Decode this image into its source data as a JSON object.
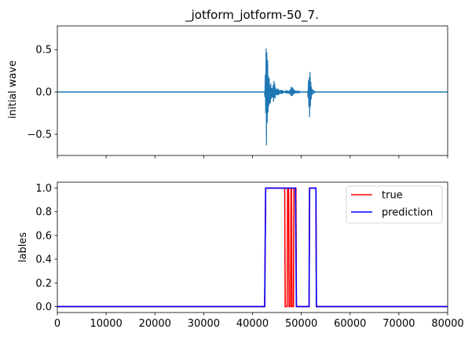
{
  "chart_data": [
    {
      "type": "line",
      "title": "_jotform_jotform-50_7.",
      "xlabel": "",
      "ylabel": "initial wave",
      "xlim": [
        0,
        80000
      ],
      "ylim": [
        -0.75,
        0.78
      ],
      "yticks": [
        -0.5,
        0.0,
        0.5
      ],
      "ytick_labels": [
        "−0.5",
        "0.0",
        "0.5"
      ],
      "xticks": [
        0,
        10000,
        20000,
        30000,
        40000,
        50000,
        60000,
        70000,
        80000
      ],
      "show_xtick_labels": false,
      "grid": false,
      "series": [
        {
          "color": "#1f77b4",
          "envelope": {
            "x": [
              0,
              42500,
              42700,
              42900,
              43000,
              43200,
              43400,
              43600,
              43800,
              44000,
              44400,
              44800,
              45300,
              45800,
              46300,
              46800,
              47300,
              47700,
              48000,
              48500,
              49000,
              49500,
              50000,
              51300,
              51500,
              51700,
              51900,
              52100,
              52300,
              52600,
              53000,
              80000
            ],
            "upper": [
              0.0,
              0.0,
              0.45,
              0.7,
              0.6,
              0.4,
              0.2,
              0.12,
              0.1,
              0.06,
              0.15,
              0.06,
              0.04,
              0.03,
              0.02,
              0.01,
              0.01,
              0.03,
              0.1,
              0.03,
              0.02,
              0.01,
              0.0,
              0.0,
              0.18,
              0.3,
              0.22,
              0.1,
              0.03,
              0.01,
              0.0,
              0.0
            ],
            "lower": [
              0.0,
              0.0,
              -0.4,
              -0.7,
              -0.55,
              -0.38,
              -0.2,
              -0.15,
              -0.12,
              -0.1,
              -0.13,
              -0.06,
              -0.04,
              -0.03,
              -0.02,
              -0.01,
              -0.01,
              -0.03,
              -0.08,
              -0.03,
              -0.02,
              -0.01,
              0.0,
              0.0,
              -0.2,
              -0.32,
              -0.25,
              -0.1,
              -0.03,
              -0.01,
              0.0,
              0.0
            ]
          }
        }
      ]
    },
    {
      "type": "line",
      "title": "",
      "xlabel": "",
      "ylabel": "lables",
      "xlim": [
        0,
        80000
      ],
      "ylim": [
        -0.05,
        1.05
      ],
      "yticks": [
        0.0,
        0.2,
        0.4,
        0.6,
        0.8,
        1.0
      ],
      "ytick_labels": [
        "0.0",
        "0.2",
        "0.4",
        "0.6",
        "0.8",
        "1.0"
      ],
      "xticks": [
        0,
        10000,
        20000,
        30000,
        40000,
        50000,
        60000,
        70000,
        80000
      ],
      "xtick_labels": [
        "0",
        "10000",
        "20000",
        "30000",
        "40000",
        "50000",
        "60000",
        "70000",
        "80000"
      ],
      "grid": false,
      "legend": "top-right",
      "series": [
        {
          "name": "true",
          "color": "#ff0000",
          "x": [
            0,
            42500,
            42700,
            46600,
            46700,
            47100,
            47200,
            47400,
            47500,
            47800,
            47900,
            48000,
            48100,
            48400,
            48500,
            48900,
            49000,
            51600,
            51700,
            53000,
            53100,
            80000
          ],
          "y": [
            0,
            0,
            1,
            1,
            0,
            0,
            1,
            1,
            0,
            0,
            1,
            1,
            0,
            0,
            1,
            1,
            0,
            0,
            1,
            1,
            0,
            0
          ]
        },
        {
          "name": "prediction",
          "color": "#0000ff",
          "x": [
            0,
            42500,
            42700,
            48800,
            49000,
            51600,
            51700,
            53000,
            53100,
            80000
          ],
          "y": [
            0,
            0,
            1,
            1,
            0,
            0,
            1,
            1,
            0,
            0
          ]
        }
      ]
    }
  ]
}
